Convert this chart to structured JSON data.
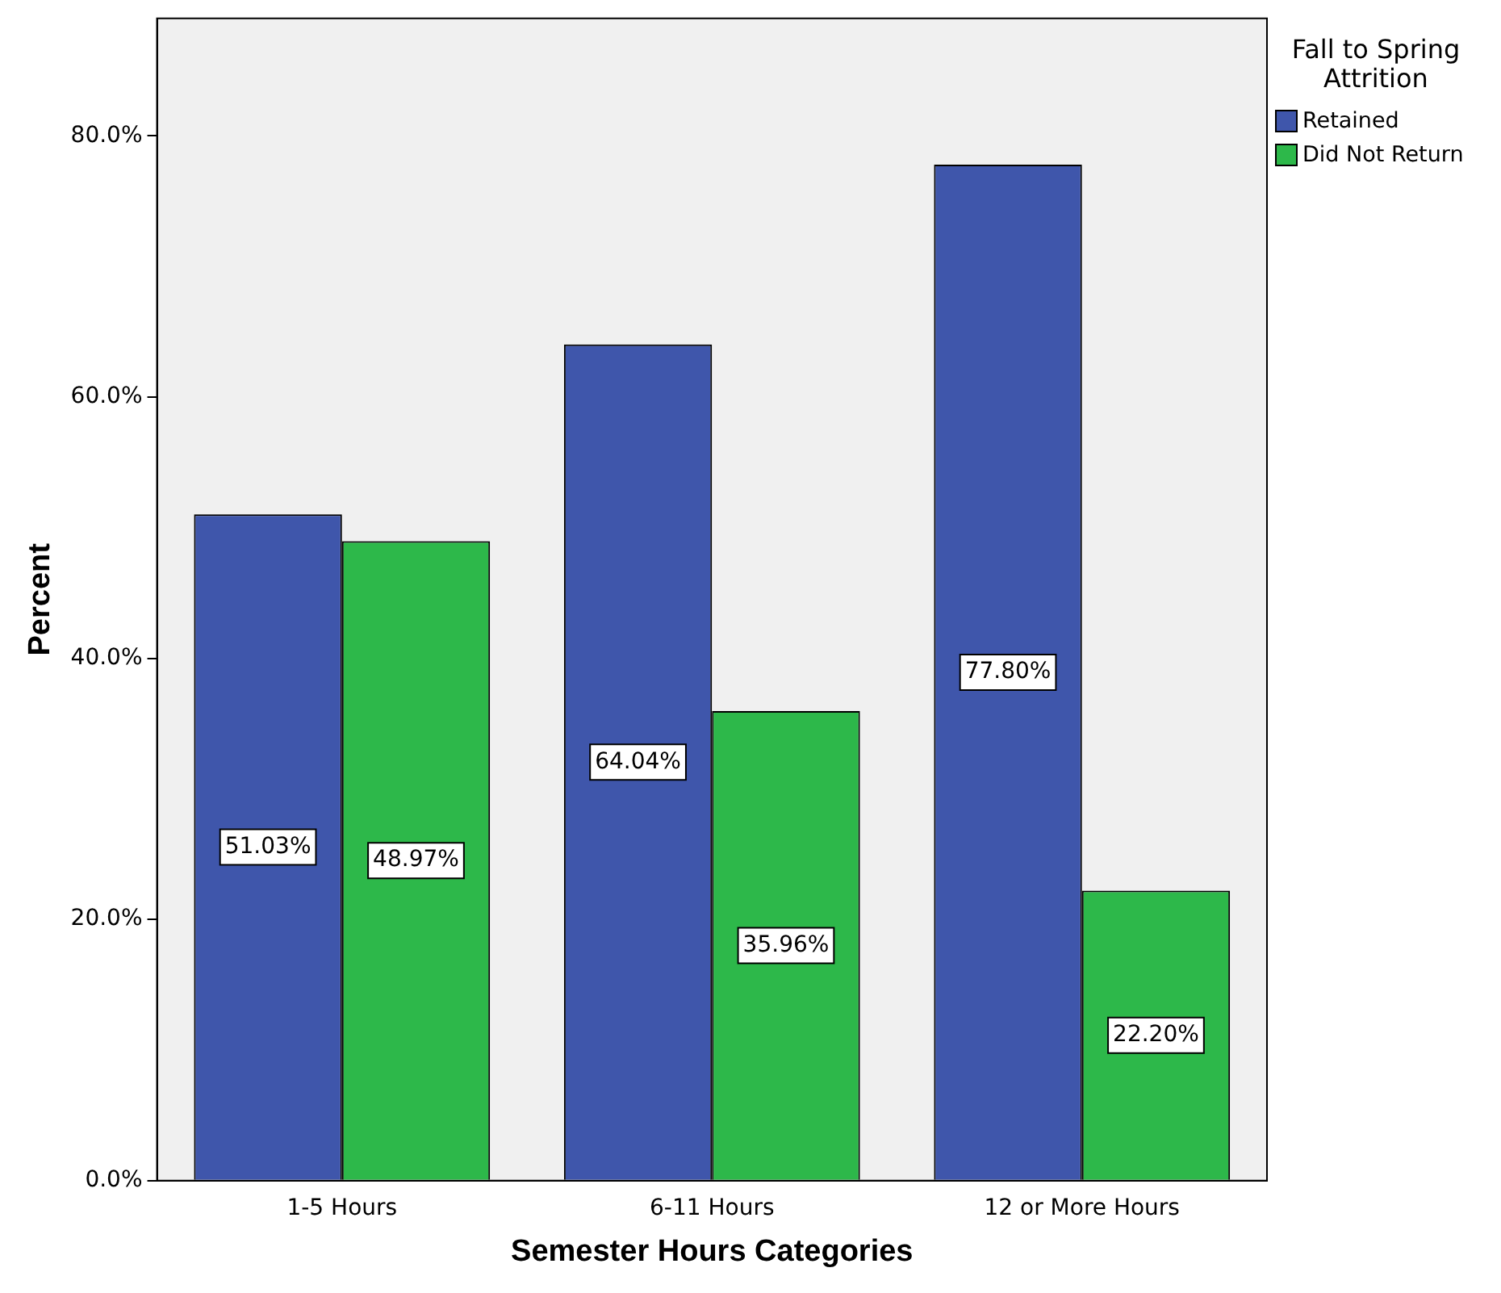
{
  "chart_data": {
    "type": "bar",
    "xlabel": "Semester Hours Categories",
    "ylabel": "Percent",
    "legend_title": "Fall to Spring Attrition",
    "legend": "top right",
    "categories": [
      "1-5 Hours",
      "6-11 Hours",
      "12 or More Hours"
    ],
    "series": [
      {
        "name": "Retained",
        "color": "#3f56ab",
        "values": [
          51.03,
          64.04,
          77.8
        ],
        "value_labels": [
          "51.03%",
          "64.04%",
          "77.80%"
        ]
      },
      {
        "name": "Did Not Return",
        "color": "#2db84a",
        "values": [
          48.97,
          35.96,
          22.2
        ],
        "value_labels": [
          "48.97%",
          "35.96%",
          "22.20%"
        ]
      }
    ],
    "ylim": [
      0,
      89
    ],
    "yticks": [
      {
        "value": 0,
        "label": "0.0%"
      },
      {
        "value": 20,
        "label": "20.0%"
      },
      {
        "value": 40,
        "label": "40.0%"
      },
      {
        "value": 60,
        "label": "60.0%"
      },
      {
        "value": 80,
        "label": "80.0%"
      }
    ],
    "grid": false
  }
}
